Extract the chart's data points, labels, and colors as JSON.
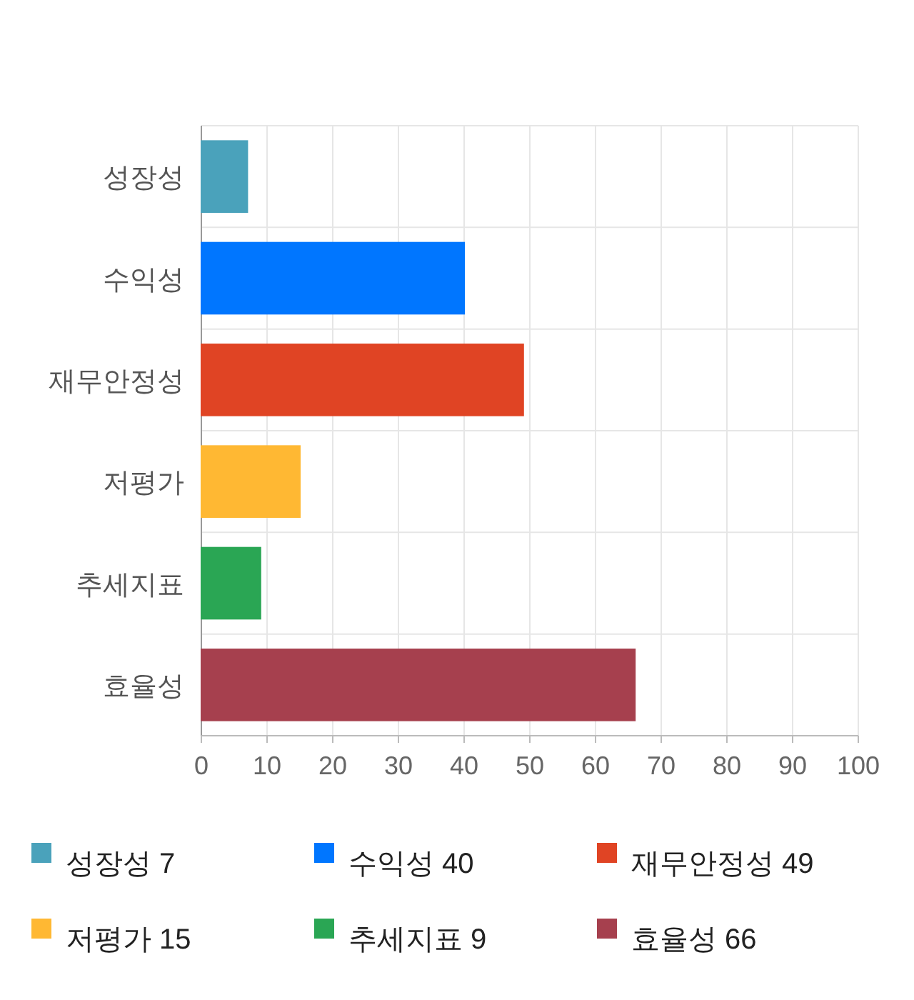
{
  "chart_data": {
    "type": "bar",
    "orientation": "horizontal",
    "categories": [
      "성장성",
      "수익성",
      "재무안정성",
      "저평가",
      "추세지표",
      "효율성"
    ],
    "series": [
      {
        "name": "성장성 7",
        "color": "#4aa2bb",
        "values": [
          7,
          null,
          null,
          null,
          null,
          null
        ]
      },
      {
        "name": "수익성 40",
        "color": "#0076ff",
        "values": [
          null,
          40,
          null,
          null,
          null,
          null
        ]
      },
      {
        "name": "재무안정성 49",
        "color": "#e04424",
        "values": [
          null,
          null,
          49,
          null,
          null,
          null
        ]
      },
      {
        "name": "저평가 15",
        "color": "#ffb833",
        "values": [
          null,
          null,
          null,
          15,
          null,
          null
        ]
      },
      {
        "name": "추세지표 9",
        "color": "#2aa654",
        "values": [
          null,
          null,
          null,
          null,
          9,
          null
        ]
      },
      {
        "name": "효율성 66",
        "color": "#a6404e",
        "values": [
          null,
          null,
          null,
          null,
          null,
          66
        ]
      }
    ],
    "xlim": [
      0,
      100
    ],
    "xticks": [
      0,
      10,
      20,
      30,
      40,
      50,
      60,
      70,
      80,
      90,
      100
    ],
    "grid": true,
    "legend": "bottom"
  }
}
